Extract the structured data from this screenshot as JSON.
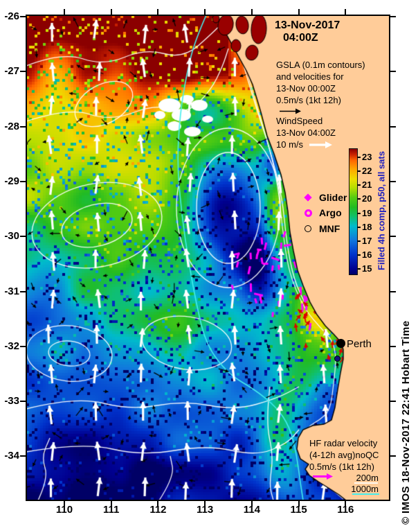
{
  "title": {
    "date": "13-Nov-2017",
    "time": "04:00Z"
  },
  "gsla_note": {
    "lines": [
      "GSLA (0.1m contours)",
      "and velocities for",
      "13-Nov 00:00Z",
      "0.5m/s (1kt 12h)"
    ],
    "arrow_color": "#000000"
  },
  "wind_note": {
    "lines": [
      "WindSpeed",
      "13-Nov 04:00Z",
      "10 m/s"
    ],
    "arrow_color": "#ffffff"
  },
  "hf_note": {
    "lines": [
      "HF radar velocity",
      "(4-12h avg)noQC",
      "0.5m/s (1kt 12h)"
    ],
    "arrow_color": "#ff00ff"
  },
  "depth_legend": {
    "shelf": "200m",
    "slope": "1000m",
    "shelf_line_color": "#ffffff",
    "slope_line_color": "#44eeee"
  },
  "colorbar": {
    "title": "Filled 4h comp, p50, all sats",
    "title_color": "#2020c0",
    "ticks": [
      "23",
      "22",
      "21",
      "20",
      "19",
      "18",
      "17",
      "16",
      "15"
    ],
    "gradient": [
      [
        14.6,
        "#000066"
      ],
      [
        15,
        "#000090"
      ],
      [
        16,
        "#0033cc"
      ],
      [
        17,
        "#1177dd"
      ],
      [
        18,
        "#00bbcc"
      ],
      [
        18.7,
        "#11c066"
      ],
      [
        19.3,
        "#22bb22"
      ],
      [
        20,
        "#55cc11"
      ],
      [
        20.7,
        "#b8dd00"
      ],
      [
        21.3,
        "#eedd00"
      ],
      [
        22,
        "#ffa500"
      ],
      [
        22.6,
        "#ff6600"
      ],
      [
        23,
        "#cc2200"
      ],
      [
        23.4,
        "#8b0000"
      ]
    ]
  },
  "obs_legend": [
    {
      "label": "Glider",
      "symbol": "diamond",
      "color": "#ff00ff"
    },
    {
      "label": "Argo",
      "symbol": "circled-dot",
      "color": "#ff00ff"
    },
    {
      "label": "MNF",
      "symbol": "open-circle",
      "color": "#000000"
    }
  ],
  "city": {
    "name": "Perth"
  },
  "credit": "© IMOS 18-Nov-2017 22:41 Hobart Time",
  "axes": {
    "x_ticks": [
      "110",
      "111",
      "112",
      "113",
      "114",
      "115",
      "116"
    ],
    "y_ticks": [
      "-26",
      "-27",
      "-28",
      "-29",
      "-30",
      "-31",
      "-32",
      "-33",
      "-34"
    ]
  },
  "map": {
    "land_color": "#ffcc99",
    "background": "#ffffff",
    "cloud_color": "#ffffff",
    "contour_color": "#ffffff",
    "shark_bay_color": "#990000",
    "wind_arrow_color": "#ffffff",
    "current_arrow_color": "#000000",
    "hf_arrow_color": "#dd0000",
    "track_color": "#ff00ff"
  }
}
